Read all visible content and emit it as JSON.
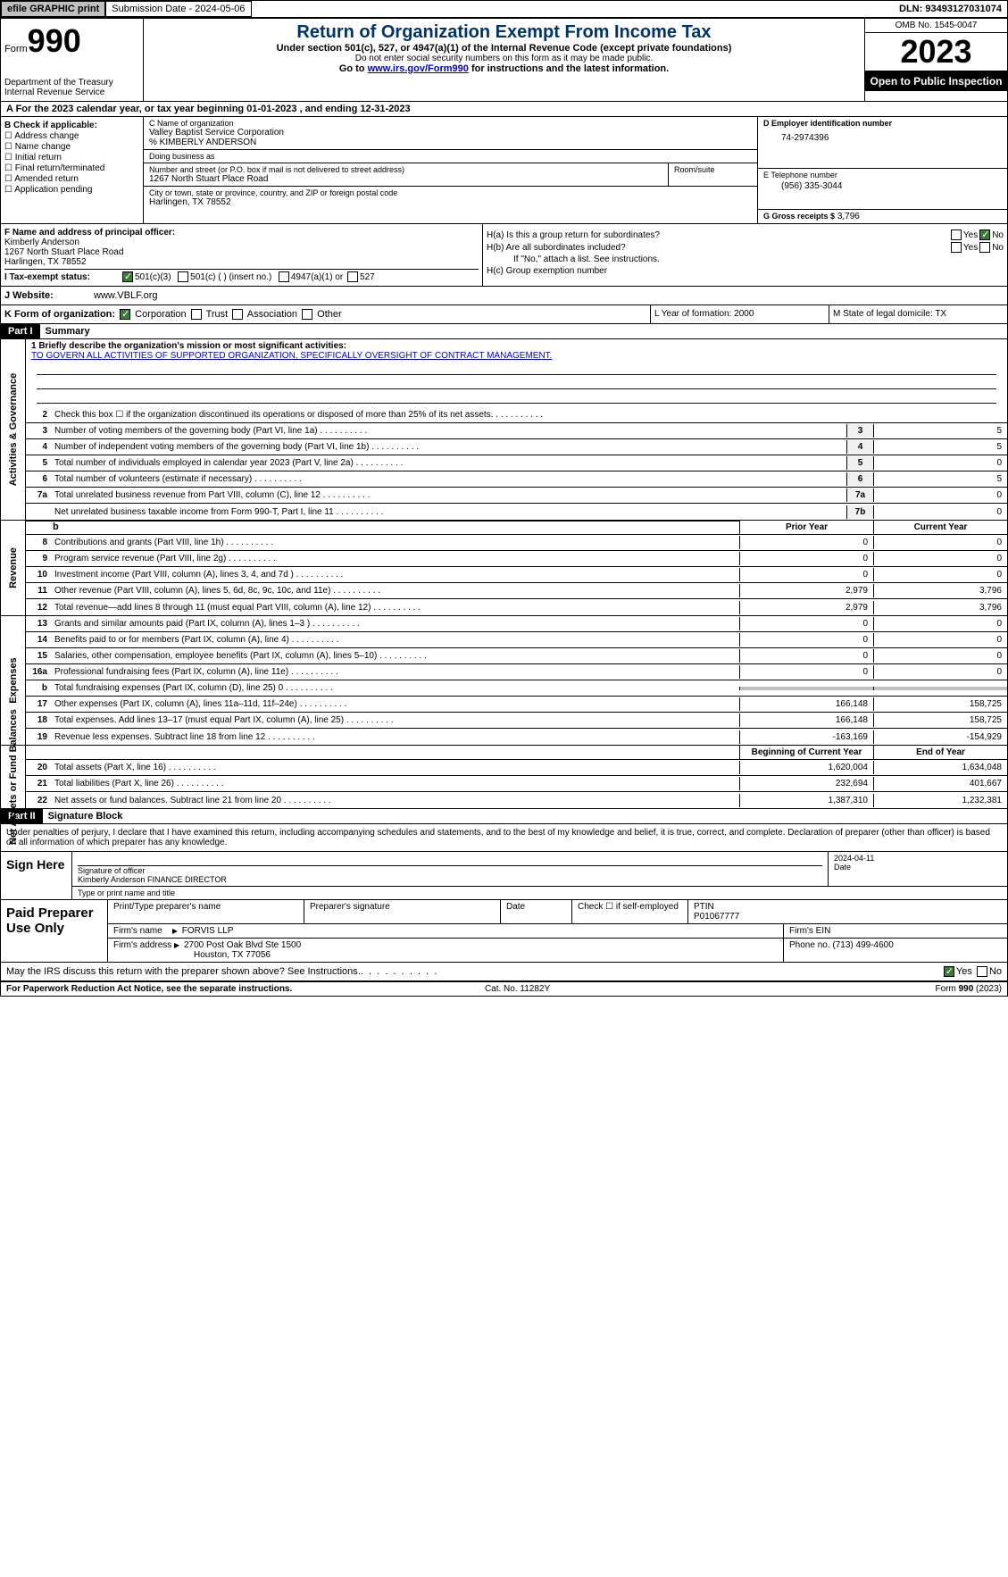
{
  "topbar": {
    "efile": "efile GRAPHIC print",
    "submission": "Submission Date - 2024-05-06",
    "dln": "DLN: 93493127031074"
  },
  "header": {
    "form_label": "Form",
    "form_num": "990",
    "dept": "Department of the Treasury\nInternal Revenue Service",
    "title": "Return of Organization Exempt From Income Tax",
    "subtitle": "Under section 501(c), 527, or 4947(a)(1) of the Internal Revenue Code (except private foundations)",
    "note": "Do not enter social security numbers on this form as it may be made public.",
    "goto_pre": "Go to ",
    "goto_link": "www.irs.gov/Form990",
    "goto_post": " for instructions and the latest information.",
    "omb": "OMB No. 1545-0047",
    "year": "2023",
    "open": "Open to Public Inspection"
  },
  "rowA": "A For the 2023 calendar year, or tax year beginning 01-01-2023    , and ending 12-31-2023",
  "boxB": {
    "label": "B Check if applicable:",
    "items": [
      "Address change",
      "Name change",
      "Initial return",
      "Final return/terminated",
      "Amended return",
      "Application pending"
    ]
  },
  "boxC": {
    "name_lbl": "C Name of organization",
    "name": "Valley Baptist Service Corporation",
    "care": "% KIMBERLY ANDERSON",
    "dba_lbl": "Doing business as",
    "dba": "",
    "addr_lbl": "Number and street (or P.O. box if mail is not delivered to street address)",
    "addr": "1267 North Stuart Place Road",
    "room_lbl": "Room/suite",
    "city_lbl": "City or town, state or province, country, and ZIP or foreign postal code",
    "city": "Harlingen, TX  78552"
  },
  "boxD": {
    "lbl": "D Employer identification number",
    "val": "74-2974396"
  },
  "boxE": {
    "lbl": "E Telephone number",
    "val": "(956) 335-3044"
  },
  "boxG": {
    "lbl": "G Gross receipts $",
    "val": "3,796"
  },
  "boxF": {
    "lbl": "F  Name and address of principal officer:",
    "name": "Kimberly Anderson",
    "addr": "1267 North Stuart Place Road",
    "city": "Harlingen, TX  78552"
  },
  "boxH": {
    "a_lbl": "H(a)  Is this a group return for subordinates?",
    "a_yes": "Yes",
    "a_no": "No",
    "b_lbl": "H(b)  Are all subordinates included?",
    "b_yes": "Yes",
    "b_no": "No",
    "b_note": "If \"No,\" attach a list. See instructions.",
    "c_lbl": "H(c)  Group exemption number"
  },
  "rowI": {
    "lbl": "I    Tax-exempt status:",
    "opt1": "501(c)(3)",
    "opt2": "501(c) (  ) (insert no.)",
    "opt3": "4947(a)(1) or",
    "opt4": "527"
  },
  "rowJ": {
    "lbl": "J    Website:",
    "val": "www.VBLF.org"
  },
  "rowK": {
    "lbl": "K Form of organization:",
    "opts": [
      "Corporation",
      "Trust",
      "Association",
      "Other"
    ],
    "L": "L Year of formation: 2000",
    "M": "M State of legal domicile: TX"
  },
  "part1": {
    "hdr": "Part I",
    "title": "Summary"
  },
  "mission": {
    "line1_lbl": "1   Briefly describe the organization's mission or most significant activities:",
    "text": "TO GOVERN ALL ACTIVITIES OF SUPPORTED ORGANIZATION, SPECIFICALLY OVERSIGHT OF CONTRACT MANAGEMENT."
  },
  "gov_lines": [
    {
      "n": "2",
      "d": "Check this box ☐  if the organization discontinued its operations or disposed of more than 25% of its net assets.",
      "box": "",
      "v": ""
    },
    {
      "n": "3",
      "d": "Number of voting members of the governing body (Part VI, line 1a)",
      "box": "3",
      "v": "5"
    },
    {
      "n": "4",
      "d": "Number of independent voting members of the governing body (Part VI, line 1b)",
      "box": "4",
      "v": "5"
    },
    {
      "n": "5",
      "d": "Total number of individuals employed in calendar year 2023 (Part V, line 2a)",
      "box": "5",
      "v": "0"
    },
    {
      "n": "6",
      "d": "Total number of volunteers (estimate if necessary)",
      "box": "6",
      "v": "5"
    },
    {
      "n": "7a",
      "d": "Total unrelated business revenue from Part VIII, column (C), line 12",
      "box": "7a",
      "v": "0"
    },
    {
      "n": "",
      "d": "Net unrelated business taxable income from Form 990-T, Part I, line 11",
      "box": "7b",
      "v": "0"
    }
  ],
  "rev_hdr": {
    "prior": "Prior Year",
    "current": "Current Year"
  },
  "rev_lines": [
    {
      "n": "8",
      "d": "Contributions and grants (Part VIII, line 1h)",
      "p": "0",
      "c": "0"
    },
    {
      "n": "9",
      "d": "Program service revenue (Part VIII, line 2g)",
      "p": "0",
      "c": "0"
    },
    {
      "n": "10",
      "d": "Investment income (Part VIII, column (A), lines 3, 4, and 7d )",
      "p": "0",
      "c": "0"
    },
    {
      "n": "11",
      "d": "Other revenue (Part VIII, column (A), lines 5, 6d, 8c, 9c, 10c, and 11e)",
      "p": "2,979",
      "c": "3,796"
    },
    {
      "n": "12",
      "d": "Total revenue—add lines 8 through 11 (must equal Part VIII, column (A), line 12)",
      "p": "2,979",
      "c": "3,796"
    }
  ],
  "exp_lines": [
    {
      "n": "13",
      "d": "Grants and similar amounts paid (Part IX, column (A), lines 1–3 )",
      "p": "0",
      "c": "0"
    },
    {
      "n": "14",
      "d": "Benefits paid to or for members (Part IX, column (A), line 4)",
      "p": "0",
      "c": "0"
    },
    {
      "n": "15",
      "d": "Salaries, other compensation, employee benefits (Part IX, column (A), lines 5–10)",
      "p": "0",
      "c": "0"
    },
    {
      "n": "16a",
      "d": "Professional fundraising fees (Part IX, column (A), line 11e)",
      "p": "0",
      "c": "0"
    },
    {
      "n": "b",
      "d": "Total fundraising expenses (Part IX, column (D), line 25) 0",
      "p": "",
      "c": "",
      "gray": true
    },
    {
      "n": "17",
      "d": "Other expenses (Part IX, column (A), lines 11a–11d, 11f–24e)",
      "p": "166,148",
      "c": "158,725"
    },
    {
      "n": "18",
      "d": "Total expenses. Add lines 13–17 (must equal Part IX, column (A), line 25)",
      "p": "166,148",
      "c": "158,725"
    },
    {
      "n": "19",
      "d": "Revenue less expenses. Subtract line 18 from line 12",
      "p": "-163,169",
      "c": "-154,929"
    }
  ],
  "net_hdr": {
    "begin": "Beginning of Current Year",
    "end": "End of Year"
  },
  "net_lines": [
    {
      "n": "20",
      "d": "Total assets (Part X, line 16)",
      "p": "1,620,004",
      "c": "1,634,048"
    },
    {
      "n": "21",
      "d": "Total liabilities (Part X, line 26)",
      "p": "232,694",
      "c": "401,667"
    },
    {
      "n": "22",
      "d": "Net assets or fund balances. Subtract line 21 from line 20",
      "p": "1,387,310",
      "c": "1,232,381"
    }
  ],
  "part2": {
    "hdr": "Part II",
    "title": "Signature Block"
  },
  "sig_text": "Under penalties of perjury, I declare that I have examined this return, including accompanying schedules and statements, and to the best of my knowledge and belief, it is true, correct, and complete. Declaration of preparer (other than officer) is based on all information of which preparer has any knowledge.",
  "sign": {
    "lbl": "Sign Here",
    "sig_lbl": "Signature of officer",
    "name": "Kimberly Anderson FINANCE DIRECTOR",
    "type_lbl": "Type or print name and title",
    "date_lbl": "Date",
    "date": "2024-04-11"
  },
  "paid": {
    "lbl": "Paid Preparer Use Only",
    "print_lbl": "Print/Type preparer's name",
    "sig_lbl": "Preparer's signature",
    "date_lbl": "Date",
    "check_lbl": "Check ☐ if self-employed",
    "ptin_lbl": "PTIN",
    "ptin": "P01067777",
    "firm_name_lbl": "Firm's name",
    "firm_name": "FORVIS LLP",
    "firm_ein_lbl": "Firm's EIN",
    "firm_addr_lbl": "Firm's address",
    "firm_addr": "2700 Post Oak Blvd Ste 1500",
    "firm_city": "Houston, TX  77056",
    "phone_lbl": "Phone no.",
    "phone": "(713) 499-4600"
  },
  "discuss": {
    "q": "May the IRS discuss this return with the preparer shown above? See Instructions.",
    "yes": "Yes",
    "no": "No"
  },
  "footer": {
    "left": "For Paperwork Reduction Act Notice, see the separate instructions.",
    "mid": "Cat. No. 11282Y",
    "right": "Form 990 (2023)"
  },
  "vlabels": {
    "gov": "Activities & Governance",
    "rev": "Revenue",
    "exp": "Expenses",
    "net": "Net Assets or Fund Balances"
  }
}
